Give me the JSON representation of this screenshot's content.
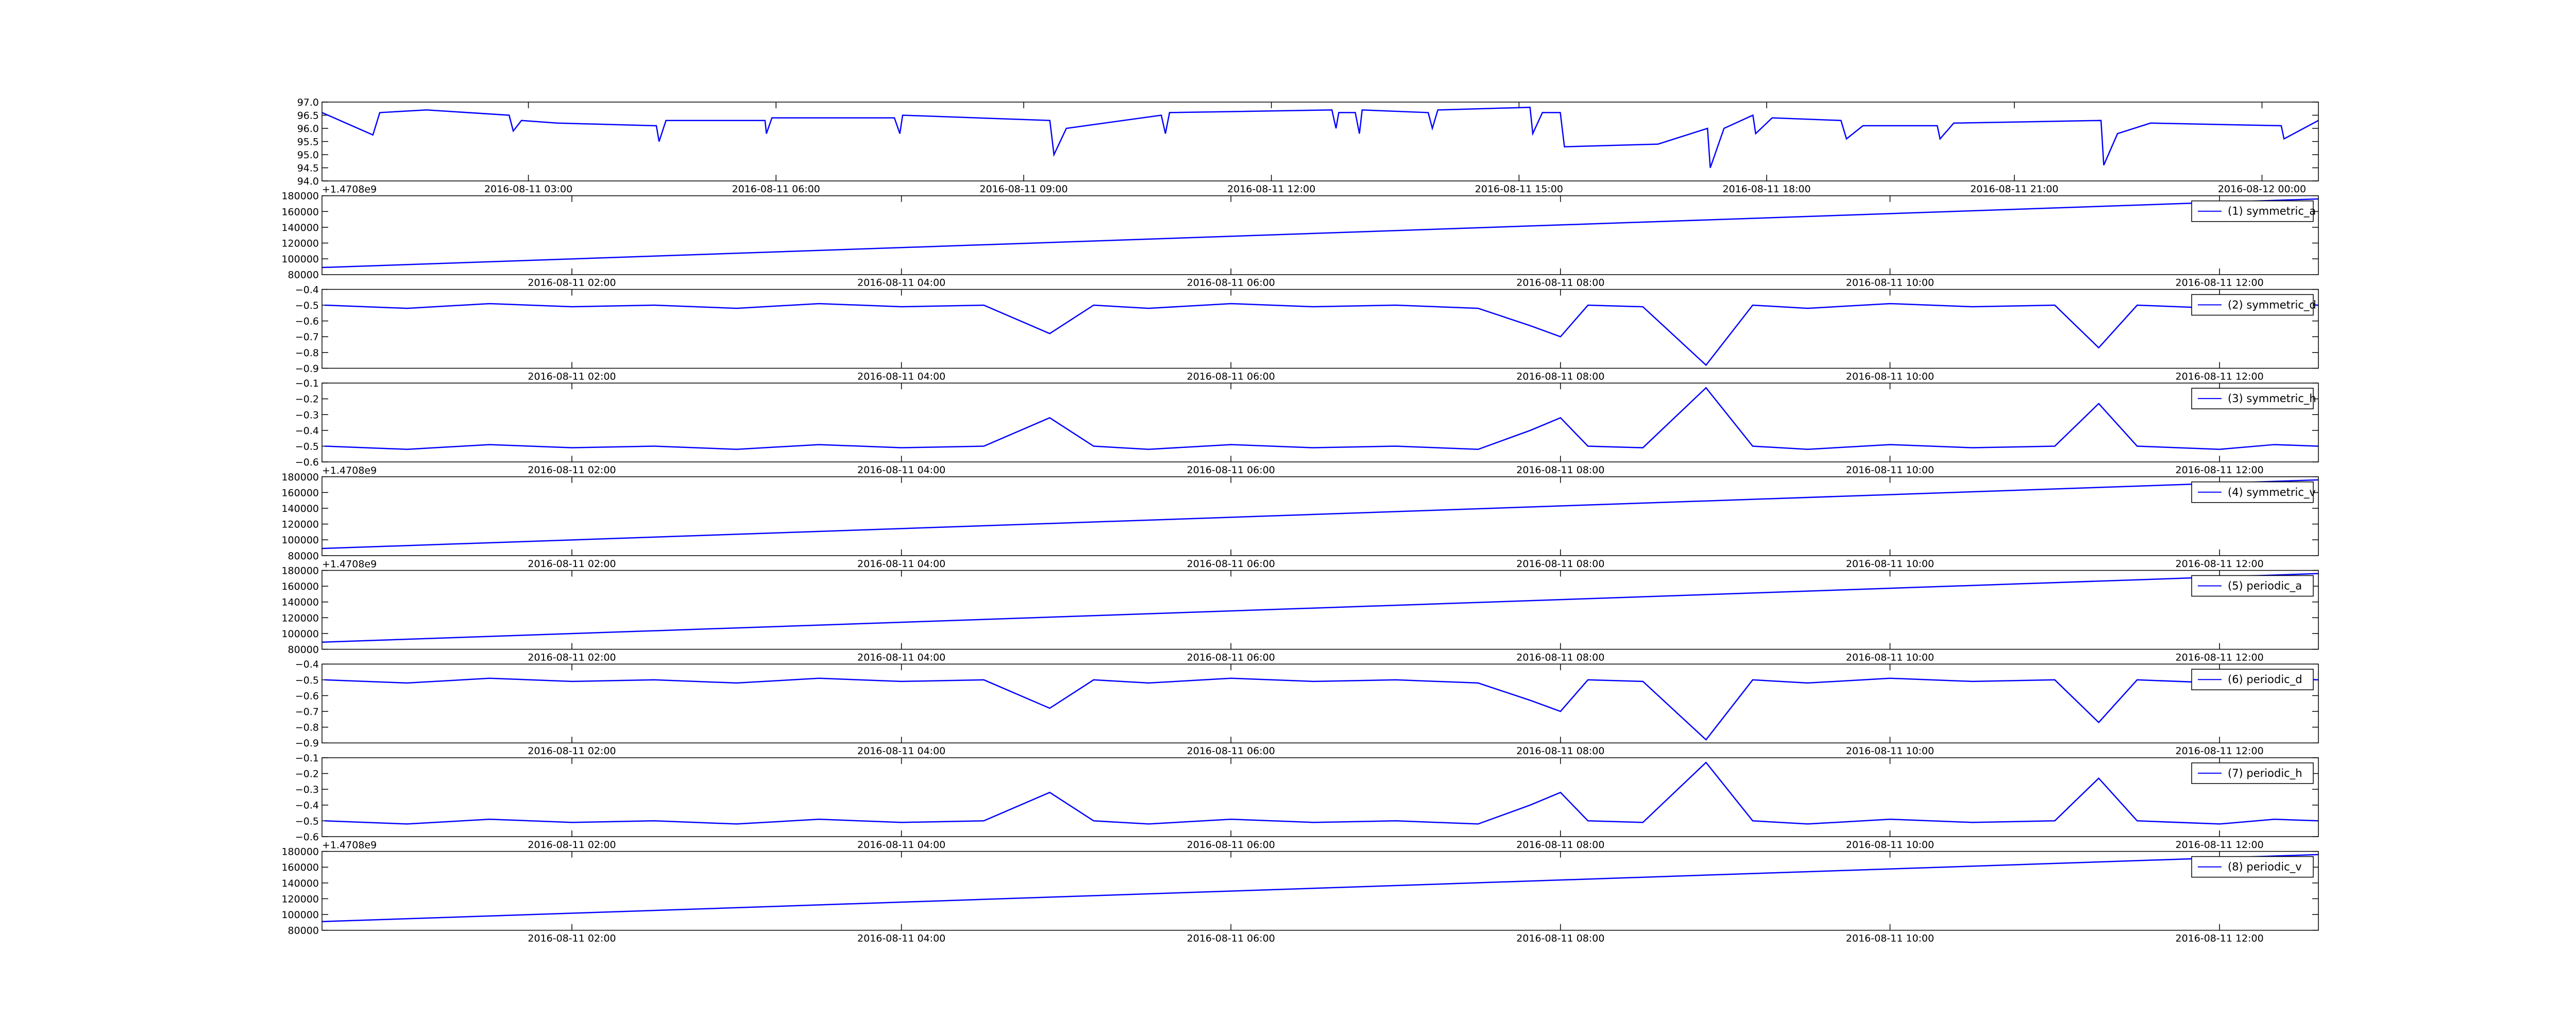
{
  "chart_data": [
    {
      "type": "line",
      "x": [
        "2016-08-11 00:30",
        "2016-08-11 01:07",
        "2016-08-11 01:12",
        "2016-08-11 01:46",
        "2016-08-11 02:46",
        "2016-08-11 02:49",
        "2016-08-11 02:55",
        "2016-08-11 03:21",
        "2016-08-11 04:33",
        "2016-08-11 04:35",
        "2016-08-11 04:40",
        "2016-08-11 05:52",
        "2016-08-11 05:53",
        "2016-08-11 05:57",
        "2016-08-11 07:26",
        "2016-08-11 07:30",
        "2016-08-11 07:32",
        "2016-08-11 09:19",
        "2016-08-11 09:22",
        "2016-08-11 09:31",
        "2016-08-11 10:40",
        "2016-08-11 10:43",
        "2016-08-11 10:46",
        "2016-08-11 12:44",
        "2016-08-11 12:47",
        "2016-08-11 12:49",
        "2016-08-11 13:01",
        "2016-08-11 13:04",
        "2016-08-11 13:06",
        "2016-08-11 13:54",
        "2016-08-11 13:57",
        "2016-08-11 14:01",
        "2016-08-11 15:08",
        "2016-08-11 15:10",
        "2016-08-11 15:17",
        "2016-08-11 15:30",
        "2016-08-11 15:33",
        "2016-08-11 16:41",
        "2016-08-11 17:17",
        "2016-08-11 17:19",
        "2016-08-11 17:29",
        "2016-08-11 17:50",
        "2016-08-11 17:52",
        "2016-08-11 18:04",
        "2016-08-11 18:54",
        "2016-08-11 18:58",
        "2016-08-11 19:10",
        "2016-08-11 20:04",
        "2016-08-11 20:06",
        "2016-08-11 20:16",
        "2016-08-11 22:03",
        "2016-08-11 22:05",
        "2016-08-11 22:15",
        "2016-08-11 22:39",
        "2016-08-12 00:14",
        "2016-08-12 00:16",
        "2016-08-12 00:41"
      ],
      "series": [
        {
          "color": "#0000ff",
          "values": [
            96.6,
            95.75,
            96.6,
            96.7,
            96.5,
            95.9,
            96.3,
            96.2,
            96.1,
            95.5,
            96.3,
            96.3,
            95.8,
            96.4,
            96.4,
            95.8,
            96.5,
            96.3,
            95.0,
            96.0,
            96.5,
            95.8,
            96.6,
            96.7,
            96.0,
            96.6,
            96.6,
            95.8,
            96.7,
            96.6,
            96.0,
            96.7,
            96.8,
            95.8,
            96.6,
            96.6,
            95.3,
            95.4,
            96.0,
            94.5,
            96.0,
            96.5,
            95.8,
            96.4,
            96.3,
            95.6,
            96.1,
            96.1,
            95.6,
            96.2,
            96.3,
            94.6,
            95.8,
            96.2,
            96.1,
            95.6,
            96.3
          ]
        }
      ],
      "xlim": [
        "2016-08-11 00:30",
        "2016-08-12 00:41"
      ],
      "xticks": [
        "2016-08-11 03:00",
        "2016-08-11 06:00",
        "2016-08-11 09:00",
        "2016-08-11 12:00",
        "2016-08-11 15:00",
        "2016-08-11 18:00",
        "2016-08-11 21:00",
        "2016-08-12 00:00"
      ],
      "ylim": [
        94,
        97
      ],
      "yticks": [
        {
          "value": 94,
          "label": "94.0"
        },
        94.5,
        {
          "value": 95,
          "label": "95.0"
        },
        95.5,
        {
          "value": 96,
          "label": "96.0"
        },
        96.5,
        {
          "value": 97,
          "label": "97.0"
        }
      ]
    },
    {
      "type": "line",
      "x": [
        "2016-08-11 00:29",
        "2016-08-11 12:36"
      ],
      "series": [
        {
          "name": "(1) symmetric_a",
          "color": "#0000ff",
          "values": [
            89000,
            176000
          ]
        }
      ],
      "xlim": [
        "2016-08-11 00:29",
        "2016-08-11 12:36"
      ],
      "xticks": [
        "2016-08-11 02:00",
        "2016-08-11 04:00",
        "2016-08-11 06:00",
        "2016-08-11 08:00",
        "2016-08-11 10:00",
        "2016-08-11 12:00"
      ],
      "ylim": [
        80000,
        180000
      ],
      "yticks": [
        80000,
        100000,
        120000,
        140000,
        160000,
        180000
      ],
      "offset_text": "+1.4708e9",
      "legend": "upper right"
    },
    {
      "type": "line",
      "x": [
        "2016-08-11 00:30",
        "2016-08-11 01:00",
        "2016-08-11 01:30",
        "2016-08-11 02:00",
        "2016-08-11 02:30",
        "2016-08-11 03:00",
        "2016-08-11 03:30",
        "2016-08-11 04:00",
        "2016-08-11 04:30",
        "2016-08-11 04:54",
        "2016-08-11 05:10",
        "2016-08-11 05:30",
        "2016-08-11 06:00",
        "2016-08-11 06:30",
        "2016-08-11 07:00",
        "2016-08-11 07:30",
        "2016-08-11 07:49",
        "2016-08-11 08:00",
        "2016-08-11 08:10",
        "2016-08-11 08:30",
        "2016-08-11 08:53",
        "2016-08-11 09:10",
        "2016-08-11 09:30",
        "2016-08-11 10:00",
        "2016-08-11 10:30",
        "2016-08-11 11:00",
        "2016-08-11 11:16",
        "2016-08-11 11:30",
        "2016-08-11 12:00",
        "2016-08-11 12:20",
        "2016-08-11 12:36"
      ],
      "series": [
        {
          "name": "(2) symmetric_d",
          "color": "#0000ff",
          "values": [
            -0.5,
            -0.52,
            -0.49,
            -0.51,
            -0.5,
            -0.52,
            -0.49,
            -0.51,
            -0.5,
            -0.68,
            -0.5,
            -0.52,
            -0.49,
            -0.51,
            -0.5,
            -0.52,
            -0.63,
            -0.7,
            -0.5,
            -0.51,
            -0.88,
            -0.5,
            -0.52,
            -0.49,
            -0.51,
            -0.5,
            -0.77,
            -0.5,
            -0.52,
            -0.49,
            -0.5
          ]
        }
      ],
      "xlim": [
        "2016-08-11 00:29",
        "2016-08-11 12:36"
      ],
      "xticks": [
        "2016-08-11 02:00",
        "2016-08-11 04:00",
        "2016-08-11 06:00",
        "2016-08-11 08:00",
        "2016-08-11 10:00",
        "2016-08-11 12:00"
      ],
      "ylim": [
        -0.9,
        -0.4
      ],
      "yticks": [
        {
          "value": -0.9,
          "label": "−0.9"
        },
        {
          "value": -0.8,
          "label": "−0.8"
        },
        {
          "value": -0.7,
          "label": "−0.7"
        },
        {
          "value": -0.6,
          "label": "−0.6"
        },
        {
          "value": -0.5,
          "label": "−0.5"
        },
        {
          "value": -0.4,
          "label": "−0.4"
        }
      ],
      "legend": "upper right"
    },
    {
      "type": "line",
      "x": [
        "2016-08-11 00:30",
        "2016-08-11 01:00",
        "2016-08-11 01:30",
        "2016-08-11 02:00",
        "2016-08-11 02:30",
        "2016-08-11 03:00",
        "2016-08-11 03:30",
        "2016-08-11 04:00",
        "2016-08-11 04:30",
        "2016-08-11 04:54",
        "2016-08-11 05:10",
        "2016-08-11 05:30",
        "2016-08-11 06:00",
        "2016-08-11 06:30",
        "2016-08-11 07:00",
        "2016-08-11 07:30",
        "2016-08-11 07:49",
        "2016-08-11 08:00",
        "2016-08-11 08:10",
        "2016-08-11 08:30",
        "2016-08-11 08:53",
        "2016-08-11 09:10",
        "2016-08-11 09:30",
        "2016-08-11 10:00",
        "2016-08-11 10:30",
        "2016-08-11 11:00",
        "2016-08-11 11:16",
        "2016-08-11 11:30",
        "2016-08-11 12:00",
        "2016-08-11 12:20",
        "2016-08-11 12:36"
      ],
      "series": [
        {
          "name": "(3) symmetric_h",
          "color": "#0000ff",
          "values": [
            -0.5,
            -0.52,
            -0.49,
            -0.51,
            -0.5,
            -0.52,
            -0.49,
            -0.51,
            -0.5,
            -0.32,
            -0.5,
            -0.52,
            -0.49,
            -0.51,
            -0.5,
            -0.52,
            -0.4,
            -0.32,
            -0.5,
            -0.51,
            -0.13,
            -0.5,
            -0.52,
            -0.49,
            -0.51,
            -0.5,
            -0.23,
            -0.5,
            -0.52,
            -0.49,
            -0.5
          ]
        }
      ],
      "xlim": [
        "2016-08-11 00:29",
        "2016-08-11 12:36"
      ],
      "xticks": [
        "2016-08-11 02:00",
        "2016-08-11 04:00",
        "2016-08-11 06:00",
        "2016-08-11 08:00",
        "2016-08-11 10:00",
        "2016-08-11 12:00"
      ],
      "ylim": [
        -0.6,
        -0.1
      ],
      "yticks": [
        {
          "value": -0.6,
          "label": "−0.6"
        },
        {
          "value": -0.5,
          "label": "−0.5"
        },
        {
          "value": -0.4,
          "label": "−0.4"
        },
        {
          "value": -0.3,
          "label": "−0.3"
        },
        {
          "value": -0.2,
          "label": "−0.2"
        },
        {
          "value": -0.1,
          "label": "−0.1"
        }
      ],
      "legend": "upper right"
    },
    {
      "type": "line",
      "x": [
        "2016-08-11 00:29",
        "2016-08-11 12:36"
      ],
      "series": [
        {
          "name": "(4) symmetric_v",
          "color": "#0000ff",
          "values": [
            89000,
            176000
          ]
        }
      ],
      "xlim": [
        "2016-08-11 00:29",
        "2016-08-11 12:36"
      ],
      "xticks": [
        "2016-08-11 02:00",
        "2016-08-11 04:00",
        "2016-08-11 06:00",
        "2016-08-11 08:00",
        "2016-08-11 10:00",
        "2016-08-11 12:00"
      ],
      "ylim": [
        80000,
        180000
      ],
      "yticks": [
        80000,
        100000,
        120000,
        140000,
        160000,
        180000
      ],
      "offset_text": "+1.4708e9",
      "legend": "upper right"
    },
    {
      "type": "line",
      "x": [
        "2016-08-11 00:29",
        "2016-08-11 12:36"
      ],
      "series": [
        {
          "name": "(5) periodic_a",
          "color": "#0000ff",
          "values": [
            89000,
            176000
          ]
        }
      ],
      "xlim": [
        "2016-08-11 00:29",
        "2016-08-11 12:36"
      ],
      "xticks": [
        "2016-08-11 02:00",
        "2016-08-11 04:00",
        "2016-08-11 06:00",
        "2016-08-11 08:00",
        "2016-08-11 10:00",
        "2016-08-11 12:00"
      ],
      "ylim": [
        80000,
        180000
      ],
      "yticks": [
        80000,
        100000,
        120000,
        140000,
        160000,
        180000
      ],
      "offset_text": "+1.4708e9",
      "legend": "upper right"
    },
    {
      "type": "line",
      "x": [
        "2016-08-11 00:30",
        "2016-08-11 01:00",
        "2016-08-11 01:30",
        "2016-08-11 02:00",
        "2016-08-11 02:30",
        "2016-08-11 03:00",
        "2016-08-11 03:30",
        "2016-08-11 04:00",
        "2016-08-11 04:30",
        "2016-08-11 04:54",
        "2016-08-11 05:10",
        "2016-08-11 05:30",
        "2016-08-11 06:00",
        "2016-08-11 06:30",
        "2016-08-11 07:00",
        "2016-08-11 07:30",
        "2016-08-11 07:49",
        "2016-08-11 08:00",
        "2016-08-11 08:10",
        "2016-08-11 08:30",
        "2016-08-11 08:53",
        "2016-08-11 09:10",
        "2016-08-11 09:30",
        "2016-08-11 10:00",
        "2016-08-11 10:30",
        "2016-08-11 11:00",
        "2016-08-11 11:16",
        "2016-08-11 11:30",
        "2016-08-11 12:00",
        "2016-08-11 12:20",
        "2016-08-11 12:36"
      ],
      "series": [
        {
          "name": "(6) periodic_d",
          "color": "#0000ff",
          "values": [
            -0.5,
            -0.52,
            -0.49,
            -0.51,
            -0.5,
            -0.52,
            -0.49,
            -0.51,
            -0.5,
            -0.68,
            -0.5,
            -0.52,
            -0.49,
            -0.51,
            -0.5,
            -0.52,
            -0.63,
            -0.7,
            -0.5,
            -0.51,
            -0.88,
            -0.5,
            -0.52,
            -0.49,
            -0.51,
            -0.5,
            -0.77,
            -0.5,
            -0.52,
            -0.49,
            -0.5
          ]
        }
      ],
      "xlim": [
        "2016-08-11 00:29",
        "2016-08-11 12:36"
      ],
      "xticks": [
        "2016-08-11 02:00",
        "2016-08-11 04:00",
        "2016-08-11 06:00",
        "2016-08-11 08:00",
        "2016-08-11 10:00",
        "2016-08-11 12:00"
      ],
      "ylim": [
        -0.9,
        -0.4
      ],
      "yticks": [
        {
          "value": -0.9,
          "label": "−0.9"
        },
        {
          "value": -0.8,
          "label": "−0.8"
        },
        {
          "value": -0.7,
          "label": "−0.7"
        },
        {
          "value": -0.6,
          "label": "−0.6"
        },
        {
          "value": -0.5,
          "label": "−0.5"
        },
        {
          "value": -0.4,
          "label": "−0.4"
        }
      ],
      "legend": "upper right"
    },
    {
      "type": "line",
      "x": [
        "2016-08-11 00:30",
        "2016-08-11 01:00",
        "2016-08-11 01:30",
        "2016-08-11 02:00",
        "2016-08-11 02:30",
        "2016-08-11 03:00",
        "2016-08-11 03:30",
        "2016-08-11 04:00",
        "2016-08-11 04:30",
        "2016-08-11 04:54",
        "2016-08-11 05:10",
        "2016-08-11 05:30",
        "2016-08-11 06:00",
        "2016-08-11 06:30",
        "2016-08-11 07:00",
        "2016-08-11 07:30",
        "2016-08-11 07:49",
        "2016-08-11 08:00",
        "2016-08-11 08:10",
        "2016-08-11 08:30",
        "2016-08-11 08:53",
        "2016-08-11 09:10",
        "2016-08-11 09:30",
        "2016-08-11 10:00",
        "2016-08-11 10:30",
        "2016-08-11 11:00",
        "2016-08-11 11:16",
        "2016-08-11 11:30",
        "2016-08-11 12:00",
        "2016-08-11 12:20",
        "2016-08-11 12:36"
      ],
      "series": [
        {
          "name": "(7) periodic_h",
          "color": "#0000ff",
          "values": [
            -0.5,
            -0.52,
            -0.49,
            -0.51,
            -0.5,
            -0.52,
            -0.49,
            -0.51,
            -0.5,
            -0.32,
            -0.5,
            -0.52,
            -0.49,
            -0.51,
            -0.5,
            -0.52,
            -0.4,
            -0.32,
            -0.5,
            -0.51,
            -0.13,
            -0.5,
            -0.52,
            -0.49,
            -0.51,
            -0.5,
            -0.23,
            -0.5,
            -0.52,
            -0.49,
            -0.5
          ]
        }
      ],
      "xlim": [
        "2016-08-11 00:29",
        "2016-08-11 12:36"
      ],
      "xticks": [
        "2016-08-11 02:00",
        "2016-08-11 04:00",
        "2016-08-11 06:00",
        "2016-08-11 08:00",
        "2016-08-11 10:00",
        "2016-08-11 12:00"
      ],
      "ylim": [
        -0.6,
        -0.1
      ],
      "yticks": [
        {
          "value": -0.6,
          "label": "−0.6"
        },
        {
          "value": -0.5,
          "label": "−0.5"
        },
        {
          "value": -0.4,
          "label": "−0.4"
        },
        {
          "value": -0.3,
          "label": "−0.3"
        },
        {
          "value": -0.2,
          "label": "−0.2"
        },
        {
          "value": -0.1,
          "label": "−0.1"
        }
      ],
      "legend": "upper right"
    },
    {
      "type": "line",
      "x": [
        "2016-08-11 00:29",
        "2016-08-11 12:36"
      ],
      "series": [
        {
          "name": "(8) periodic_v",
          "color": "#0000ff",
          "values": [
            91000,
            176000
          ]
        }
      ],
      "xlim": [
        "2016-08-11 00:29",
        "2016-08-11 12:36"
      ],
      "xticks": [
        "2016-08-11 02:00",
        "2016-08-11 04:00",
        "2016-08-11 06:00",
        "2016-08-11 08:00",
        "2016-08-11 10:00",
        "2016-08-11 12:00"
      ],
      "ylim": [
        80000,
        180000
      ],
      "yticks": [
        80000,
        100000,
        120000,
        140000,
        160000,
        180000
      ],
      "offset_text": "+1.4708e9",
      "legend": "upper right"
    }
  ]
}
